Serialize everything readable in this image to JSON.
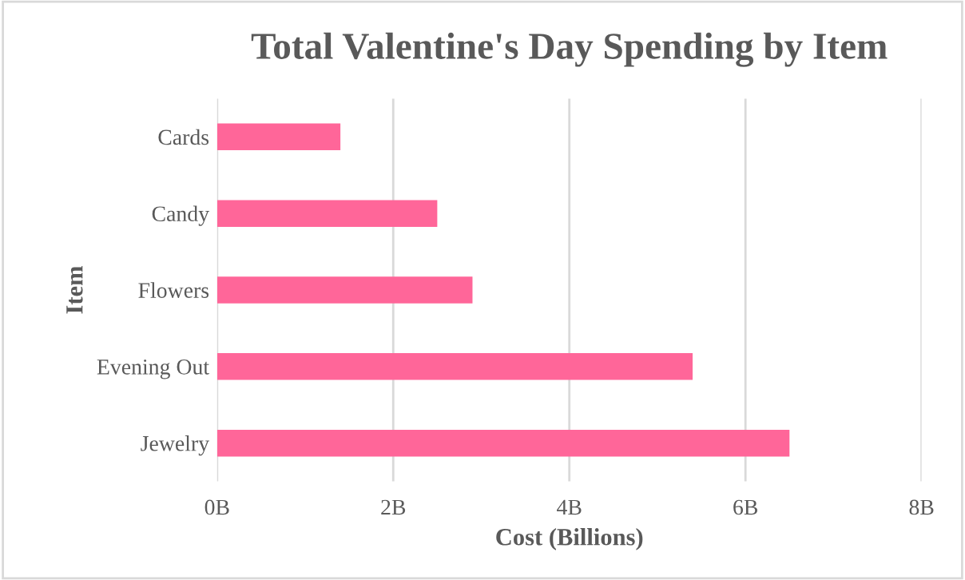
{
  "chart_data": {
    "type": "bar",
    "orientation": "horizontal",
    "title": "Total Valentine's Day Spending by Item",
    "xlabel": "Cost (Billions)",
    "ylabel": "Item",
    "categories": [
      "Cards",
      "Candy",
      "Flowers",
      "Evening Out",
      "Jewelry"
    ],
    "series": [
      {
        "color": "#ff6699",
        "values": [
          1.4,
          2.5,
          2.9,
          5.4,
          6.5
        ]
      }
    ],
    "xlim": [
      0,
      8
    ],
    "xticks": [
      {
        "value": 0,
        "label": "0B"
      },
      {
        "value": 2,
        "label": "2B"
      },
      {
        "value": 4,
        "label": "4B"
      },
      {
        "value": 6,
        "label": "6B"
      },
      {
        "value": 8,
        "label": "8B"
      }
    ],
    "grid": "x",
    "legend": false
  }
}
